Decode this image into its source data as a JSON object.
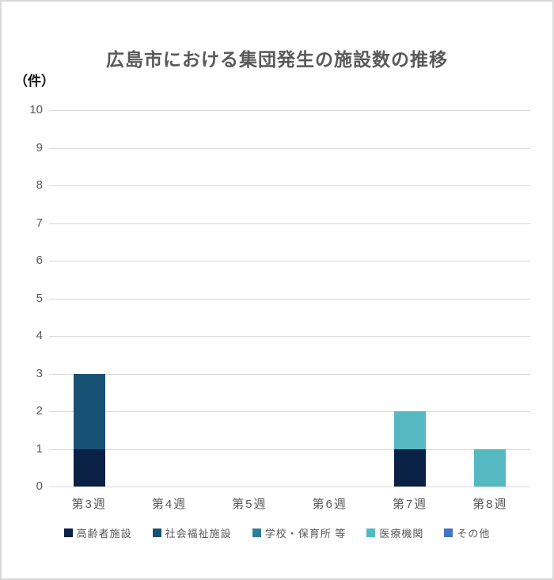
{
  "chart_data": {
    "type": "bar",
    "stacked": true,
    "title": "広島市における集団発生の施設数の推移",
    "unit_label": "（件）",
    "categories": [
      "第3週",
      "第4週",
      "第5週",
      "第6週",
      "第7週",
      "第8週"
    ],
    "series": [
      {
        "name": "高齢者施設",
        "color": "#0a2045",
        "values": [
          1,
          0,
          0,
          0,
          1,
          0
        ]
      },
      {
        "name": "社会福祉施設",
        "color": "#175275",
        "values": [
          2,
          0,
          0,
          0,
          0,
          0
        ]
      },
      {
        "name": "学校・保育所 等",
        "color": "#2d7f9b",
        "values": [
          0,
          0,
          0,
          0,
          0,
          0
        ]
      },
      {
        "name": "医療機関",
        "color": "#55b9c1",
        "values": [
          0,
          0,
          0,
          0,
          1,
          1
        ]
      },
      {
        "name": "その他",
        "color": "#4472c4",
        "values": [
          0,
          0,
          0,
          0,
          0,
          0
        ]
      }
    ],
    "ylim": [
      0,
      10
    ],
    "ytick_step": 1,
    "grid": true,
    "gridline_color": "#d9d9d9",
    "text_color": "#595959",
    "legend_position": "bottom"
  }
}
